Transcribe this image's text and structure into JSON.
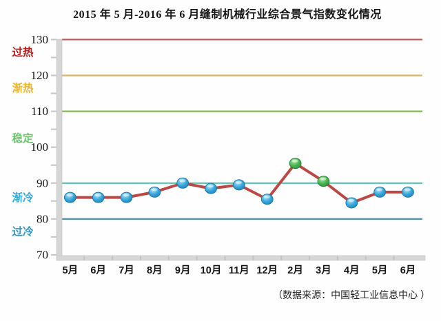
{
  "title": "2015 年 5 月-2016 年 6 月缝制机械行业综合景气指数变化情况",
  "source_note": "（数据来源：中国轻工业信息中心 ）",
  "chart_data": {
    "type": "line",
    "title": "2015 年 5 月-2016 年 6 月缝制机械行业综合景气指数变化情况",
    "xlabel": "",
    "ylabel": "",
    "legend": "none",
    "grid": "off",
    "categories": [
      "5月",
      "6月",
      "7月",
      "8月",
      "9月",
      "10月",
      "11月",
      "12月",
      "2月",
      "3月",
      "4月",
      "5月",
      "6月"
    ],
    "series": [
      {
        "name": "综合景气指数",
        "values": [
          86,
          86,
          86,
          87.5,
          90,
          88.5,
          89.5,
          85.5,
          95.5,
          90.5,
          84.5,
          87.5,
          87.5
        ],
        "line_color": "#bd4742",
        "point_styles": [
          "blue",
          "blue",
          "blue",
          "blue",
          "blue",
          "blue",
          "blue",
          "blue",
          "green",
          "green",
          "blue",
          "blue",
          "blue"
        ]
      }
    ],
    "ylim": [
      70,
      130
    ],
    "yticks": [
      70,
      80,
      90,
      100,
      110,
      120,
      130
    ],
    "minor_ytick_step": 5,
    "zones": [
      {
        "label": "过热",
        "line_value": 130,
        "line_color": "#c05a5a",
        "label_color": "#c01818",
        "label_value": 126.5
      },
      {
        "label": "渐热",
        "line_value": 120,
        "line_color": "#e3b268",
        "label_color": "#f0b428",
        "label_value": 116.5
      },
      {
        "label": "稳定",
        "line_value": 110,
        "line_color": "#7db954",
        "label_color": "#72c472",
        "label_value": 102.5
      },
      {
        "label": "渐冷",
        "line_value": 90,
        "line_color": "#55c3ae",
        "label_color": "#30aadc",
        "label_value": 86
      },
      {
        "label": "过冷",
        "line_value": 80,
        "line_color": "#4f94ad",
        "label_color": "#2d96cc",
        "label_value": 76.5
      }
    ],
    "colors": {
      "axis_band": "#d6d6d6",
      "axis_band_edge": "#c2c2c2",
      "tick": "#c9c9c9",
      "tick_label": "#151515",
      "x_label": "#151515",
      "marker_blue": {
        "light": "#a8e4fa",
        "mid": "#35a3d8",
        "dark": "#1679b0"
      },
      "marker_green": {
        "light": "#a9e8a0",
        "mid": "#45b150",
        "dark": "#288436"
      }
    }
  }
}
